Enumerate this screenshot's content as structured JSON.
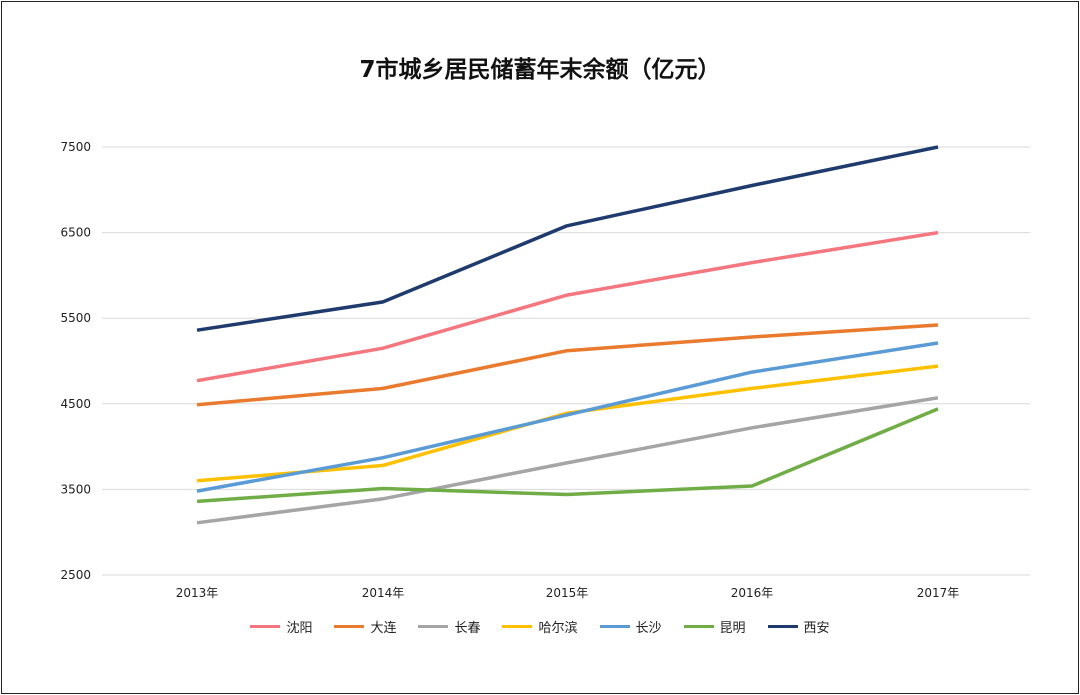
{
  "chart_data": {
    "type": "line",
    "title": "7市城乡居民储蓄年末余额（亿元）",
    "categories": [
      "2013年",
      "2014年",
      "2015年",
      "2016年",
      "2017年"
    ],
    "ylim": [
      2500,
      7500
    ],
    "yticks": [
      2500,
      3500,
      4500,
      5500,
      6500,
      7500
    ],
    "grid": true,
    "legend_position": "bottom",
    "series": [
      {
        "name": "沈阳",
        "color": "#F4777F",
        "values": [
          4770,
          5150,
          5770,
          6150,
          6500
        ]
      },
      {
        "name": "大连",
        "color": "#E97A2E",
        "values": [
          4490,
          4680,
          5120,
          5280,
          5420
        ]
      },
      {
        "name": "长春",
        "color": "#A5A5A5",
        "values": [
          3110,
          3390,
          3810,
          4220,
          4570
        ]
      },
      {
        "name": "哈尔滨",
        "color": "#FFC000",
        "values": [
          3600,
          3780,
          4390,
          4680,
          4940
        ]
      },
      {
        "name": "长沙",
        "color": "#5B9BD5",
        "values": [
          3480,
          3870,
          4370,
          4870,
          5210
        ]
      },
      {
        "name": "昆明",
        "color": "#70AD47",
        "values": [
          3360,
          3510,
          3440,
          3540,
          4440
        ]
      },
      {
        "name": "西安",
        "color": "#1F3B6E",
        "values": [
          5360,
          5690,
          6580,
          7050,
          7500
        ]
      }
    ]
  }
}
